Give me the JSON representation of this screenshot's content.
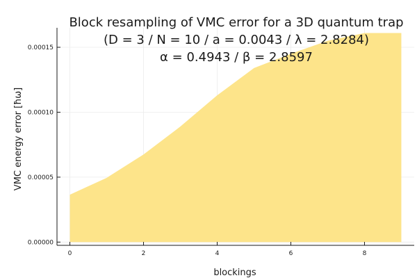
{
  "chart_data": {
    "type": "area",
    "title_lines": [
      "Block resampling of VMC error for a 3D quantum trap",
      "(D = 3 / N = 10 / a = 0.0043 / λ = 2.8284)",
      "α = 0.4943 / β = 2.8597"
    ],
    "xlabel": "blockings",
    "ylabel": "VMC energy error [ħω]",
    "x": [
      0,
      1,
      2,
      3,
      4,
      5,
      6,
      7,
      8,
      9
    ],
    "series": [
      {
        "values": [
          3.65e-05,
          4.95e-05,
          6.75e-05,
          8.9e-05,
          0.000113,
          0.000134,
          0.000145,
          0.000155,
          0.000161,
          0.000161
        ]
      }
    ],
    "xlim": [
      -0.35,
      9.35
    ],
    "ylim": [
      -2.5e-06,
      0.000165
    ],
    "xticks": [
      0,
      2,
      4,
      6,
      8
    ],
    "xtick_labels": [
      "0",
      "2",
      "4",
      "6",
      "8"
    ],
    "yticks": [
      0,
      5e-05,
      0.0001,
      0.00015
    ],
    "ytick_labels": [
      "0.00000",
      "0.00005",
      "0.00010",
      "0.00015"
    ],
    "grid": true,
    "fill_color": "#fde48a",
    "axis_color": "#1a1a1a",
    "grid_color": "#ebebeb"
  }
}
